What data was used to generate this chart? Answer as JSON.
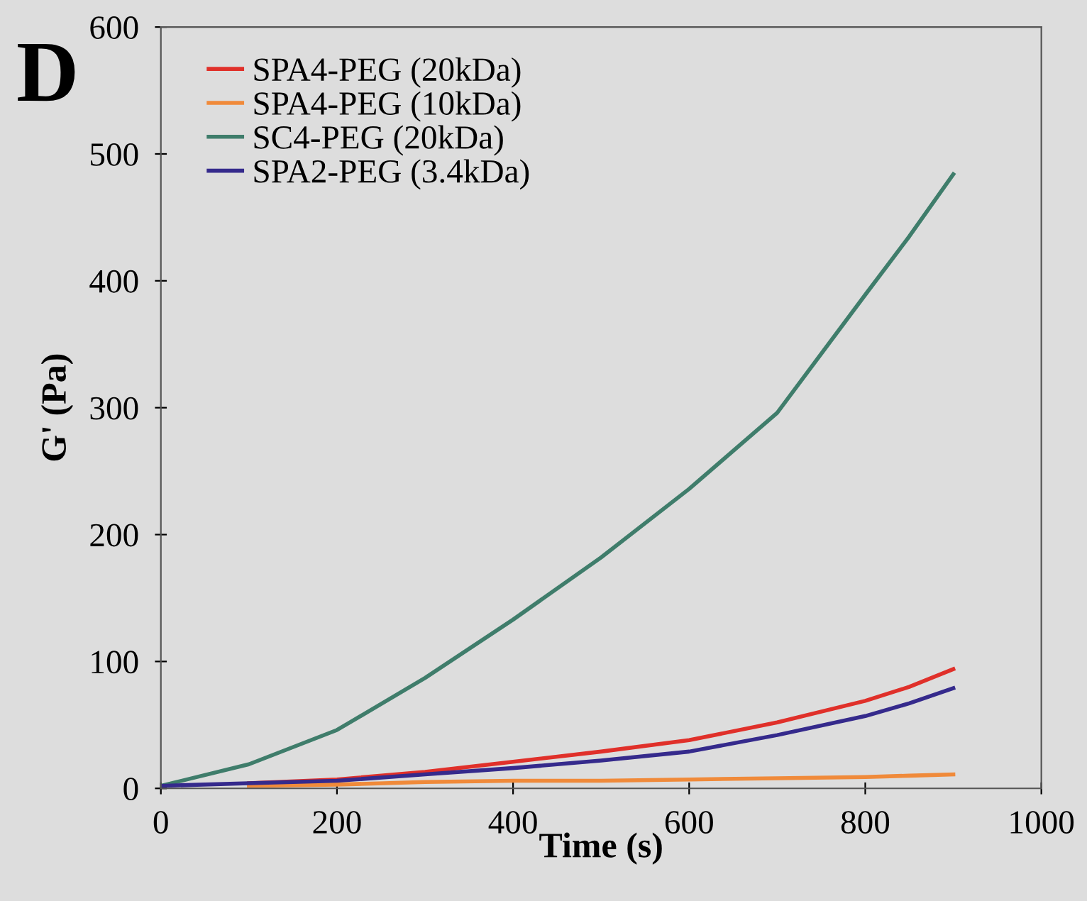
{
  "chart_data": {
    "type": "line",
    "xlabel": "Time (s)",
    "ylabel": "G' (Pa)",
    "annotations": [
      "D"
    ],
    "xlim": [
      0,
      1000
    ],
    "ylim": [
      0,
      600
    ],
    "xticks": [
      0,
      200,
      400,
      600,
      800,
      1000
    ],
    "yticks": [
      0,
      100,
      200,
      300,
      400,
      500,
      600
    ],
    "grid": false,
    "legend": "top left",
    "marker": "none",
    "line_style": "solid",
    "x": [
      0,
      100,
      200,
      300,
      400,
      500,
      600,
      700,
      800,
      850,
      900
    ],
    "series": [
      {
        "name": "SPA4-PEG (20kDa)",
        "color": "#e0302a",
        "values": [
          null,
          4,
          7,
          13,
          21,
          29,
          38,
          52,
          69,
          80,
          94
        ]
      },
      {
        "name": "SPA4-PEG (10kDa)",
        "color": "#f08a3a",
        "values": [
          null,
          2,
          3,
          5,
          6,
          6,
          7,
          8,
          9,
          10,
          11
        ]
      },
      {
        "name": "SC4-PEG (20kDa)",
        "color": "#3f7d6b",
        "values": [
          2,
          19,
          46,
          87,
          133,
          182,
          236,
          296,
          389,
          435,
          484
        ]
      },
      {
        "name": "SPA2-PEG (3.4kDa)",
        "color": "#352a8c",
        "values": [
          2,
          4,
          6,
          11,
          16,
          22,
          29,
          42,
          57,
          67,
          79
        ]
      }
    ]
  }
}
